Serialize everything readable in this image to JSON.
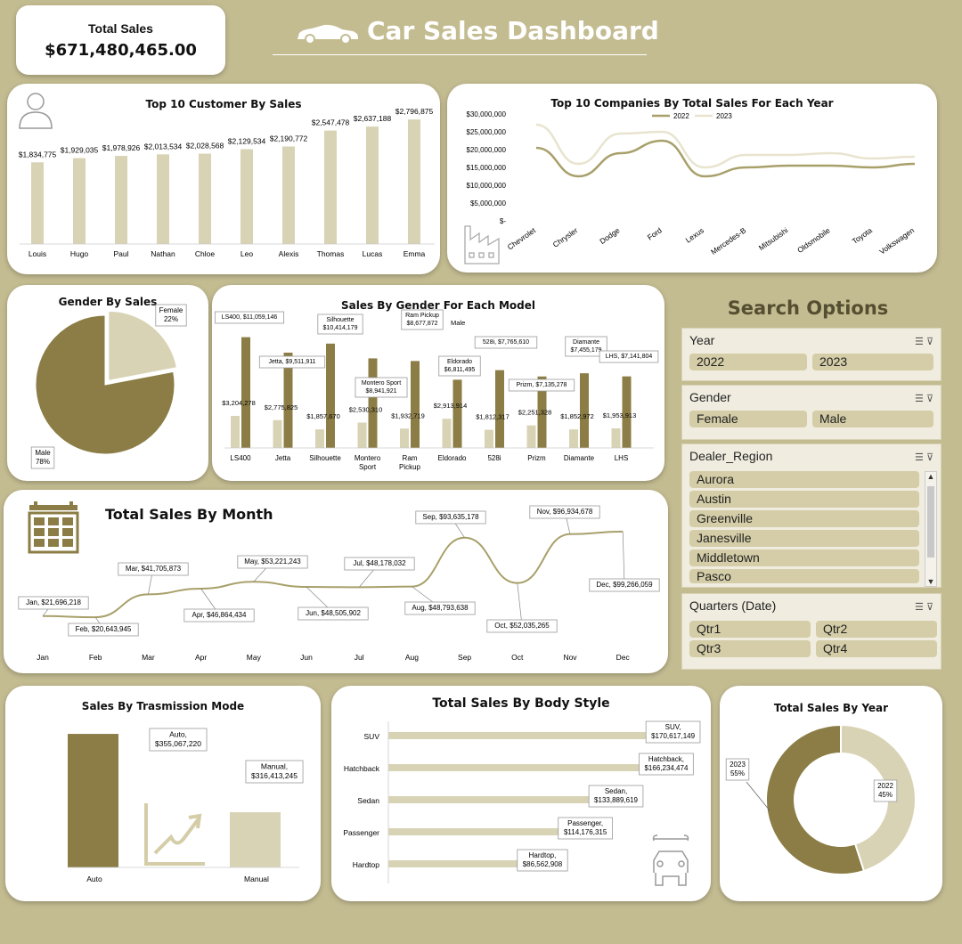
{
  "header": {
    "total_sales_label": "Total Sales",
    "total_sales_value": "$671,480,465.00",
    "dashboard_title": "Car Sales Dashboard"
  },
  "colors": {
    "background": "#c4bc91",
    "dark": "#8b7d45",
    "mid": "#a8a06a",
    "light": "#d9d3b5",
    "line2023": "#e8e4cf"
  },
  "cards": {
    "top_customers_title": "Top 10 Customer By Sales",
    "top_companies_title": "Top 10 Companies By Total Sales For Each Year",
    "gender_title": "Gender By Sales",
    "gender_model_title": "Sales By Gender For Each Model",
    "month_title": "Total Sales By Month",
    "transmission_title": "Sales By Trasmission Mode",
    "body_title": "Total Sales By Body Style",
    "year_title": "Total Sales By Year"
  },
  "search": {
    "title": "Search Options",
    "year": {
      "label": "Year",
      "items": [
        "2022",
        "2023"
      ]
    },
    "gender": {
      "label": "Gender",
      "items": [
        "Female",
        "Male"
      ]
    },
    "region": {
      "label": "Dealer_Region",
      "items": [
        "Aurora",
        "Austin",
        "Greenville",
        "Janesville",
        "Middletown",
        "Pasco"
      ]
    },
    "quarters": {
      "label": "Quarters (Date)",
      "items": [
        "Qtr1",
        "Qtr2",
        "Qtr3",
        "Qtr4"
      ]
    }
  },
  "chart_data": [
    {
      "id": "customers",
      "type": "bar",
      "title": "Top 10 Customer By Sales",
      "categories": [
        "Louis",
        "Hugo",
        "Paul",
        "Nathan",
        "Chloe",
        "Leo",
        "Alexis",
        "Thomas",
        "Lucas",
        "Emma"
      ],
      "values": [
        1834775,
        1929035,
        1978926,
        2013534,
        2028568,
        2129534,
        2190772,
        2547478,
        2637188,
        2796875
      ],
      "labels": [
        "$1,834,775",
        "$1,929,035",
        "$1,978,926",
        "$2,013,534",
        "$2,028,568",
        "$2,129,534",
        "$2,190,772",
        "$2,547,478",
        "$2,637,188",
        "$2,796,875"
      ],
      "ylim": [
        0,
        3000000
      ]
    },
    {
      "id": "companies",
      "type": "line",
      "title": "Top 10 Companies By Total Sales For Each Year",
      "categories": [
        "Chevrolet",
        "Chrysler",
        "Dodge",
        "Ford",
        "Lexus",
        "Mercedes-B",
        "Mitsubishi",
        "Oldsmobile",
        "Toyota",
        "Volkswagen"
      ],
      "series": [
        {
          "name": "2022",
          "values": [
            20500000,
            12500000,
            19000000,
            22500000,
            12500000,
            15000000,
            15500000,
            15500000,
            15000000,
            16000000
          ]
        },
        {
          "name": "2023",
          "values": [
            27000000,
            16000000,
            24500000,
            25000000,
            15000000,
            18500000,
            18500000,
            19000000,
            17500000,
            18000000
          ]
        }
      ],
      "yticks": [
        "$-",
        "$5,000,000",
        "$10,000,000",
        "$15,000,000",
        "$20,000,000",
        "$25,000,000",
        "$30,000,000"
      ],
      "ylim": [
        0,
        30000000
      ],
      "legend": "top"
    },
    {
      "id": "gender",
      "type": "pie",
      "title": "Gender By Sales",
      "slices": [
        {
          "name": "Male",
          "value": 78,
          "label": "78%"
        },
        {
          "name": "Female",
          "value": 22,
          "label": "22%"
        }
      ]
    },
    {
      "id": "gender_model",
      "type": "bar",
      "title": "Sales By Gender For Each Model",
      "categories": [
        "LS400",
        "Jetta",
        "Silhouette",
        "Montero Sport",
        "Ram Pickup",
        "Eldorado",
        "528i",
        "Prizm",
        "Diamante",
        "LHS"
      ],
      "series": [
        {
          "name": "Female",
          "values": [
            3204278,
            2775825,
            1857670,
            2530310,
            1932719,
            2913914,
            1812317,
            2251328,
            1852972,
            1953913
          ],
          "labels": [
            "$3,204,278",
            "$2,775,825",
            "$1,857,670",
            "$2,530,310",
            "$1,932,719",
            "$2,913,914",
            "$1,812,317",
            "$2,251,328",
            "$1,852,972",
            "$1,953,913"
          ]
        },
        {
          "name": "Male",
          "values": [
            11059146,
            9511911,
            10414179,
            8941921,
            8677872,
            6811495,
            7765610,
            7135278,
            7455179,
            7141804
          ],
          "labels": [
            "LS400, $11,059,146",
            "Jetta, $9,511,911",
            "Silhouette, $10,414,179",
            "Montero Sport, $8,941,921",
            "Ram Pickup, $8,677,872",
            "Eldorado, $6,811,495",
            "528i, $7,765,610",
            "Prizm, $7,135,278",
            "Diamante, $7,455,179",
            "LHS, $7,141,804"
          ]
        }
      ],
      "ylim": [
        0,
        12000000
      ]
    },
    {
      "id": "month",
      "type": "line",
      "title": "Total Sales By Month",
      "categories": [
        "Jan",
        "Feb",
        "Mar",
        "Apr",
        "May",
        "Jun",
        "Jul",
        "Aug",
        "Sep",
        "Oct",
        "Nov",
        "Dec"
      ],
      "values": [
        21696218,
        20643945,
        41705873,
        46864434,
        53221243,
        48505902,
        48178032,
        48793638,
        93635178,
        52035265,
        96934678,
        99266059
      ],
      "labels": [
        "Jan, $21,696,218",
        "Feb, $20,643,945",
        "Mar, $41,705,873",
        "Apr, $46,864,434",
        "May, $53,221,243",
        "Jun, $48,505,902",
        "Jul, $48,178,032",
        "Aug, $48,793,638",
        "Sep, $93,635,178",
        "Oct, $52,035,265",
        "Nov, $96,934,678",
        "Dec, $99,266,059"
      ]
    },
    {
      "id": "transmission",
      "type": "bar",
      "title": "Sales By Trasmission Mode",
      "categories": [
        "Auto",
        "Manual"
      ],
      "values": [
        355067220,
        316413245
      ],
      "labels": [
        "Auto, $355,067,220",
        "Manual, $316,413,245"
      ]
    },
    {
      "id": "body",
      "type": "bar",
      "title": "Total Sales By Body Style",
      "categories": [
        "SUV",
        "Hatchback",
        "Sedan",
        "Passenger",
        "Hardtop"
      ],
      "values": [
        170617149,
        166234474,
        133889619,
        114176315,
        86562908
      ],
      "labels": [
        "SUV, $170,617,149",
        "Hatchback, $166,234,474",
        "Sedan, $133,889,619",
        "Passenger, $114,176,315",
        "Hardtop, $86,562,908"
      ]
    },
    {
      "id": "year",
      "type": "pie",
      "title": "Total Sales By Year",
      "slices": [
        {
          "name": "2023",
          "value": 55,
          "label": "55%"
        },
        {
          "name": "2022",
          "value": 45,
          "label": "45%"
        }
      ]
    }
  ]
}
